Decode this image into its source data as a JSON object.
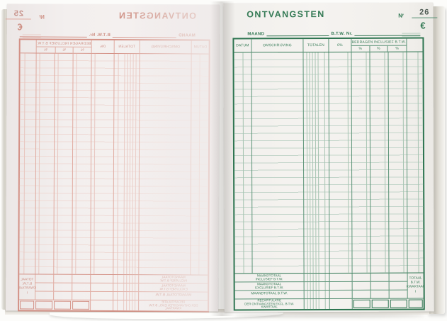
{
  "form": {
    "title": "ONTVANGSTEN",
    "number_label": "Nʳ",
    "currency": "€",
    "month_label": "MAAND",
    "vat_number_label": "B.T.W. Nr.",
    "columns": {
      "datum": "DATUM",
      "omschrijving": "OMSCHRIJVING",
      "totalen": "TOTALEN",
      "zero_pct": "0%",
      "amounts_incl_btw": "BEDRAGEN INCLUSIEF B.T.W.",
      "pct": "%"
    },
    "footer": {
      "month_total_incl": "MAANDTOTAAL\nINCLUSIEF B.T.W.",
      "month_total_excl": "MAANDTOTAAL\nEXCLUSIEF B.T.W.",
      "month_total_btw": "MAANDTOTAAL B.T.W.",
      "recap": "RECAPITULATIE\nDER ONTVANGSTEN EXCL. B.T.W.\nKWARTAAL",
      "quarter_total": "TOTAAL\nB.T.W.\nKWARTAAL\nI"
    }
  },
  "pages": {
    "left": {
      "number": "25"
    },
    "right": {
      "number": "26"
    }
  },
  "colors": {
    "green_ink": "#2e7551",
    "red_carbon_ink": "#cf8275",
    "paper": "#f4f2ef"
  }
}
